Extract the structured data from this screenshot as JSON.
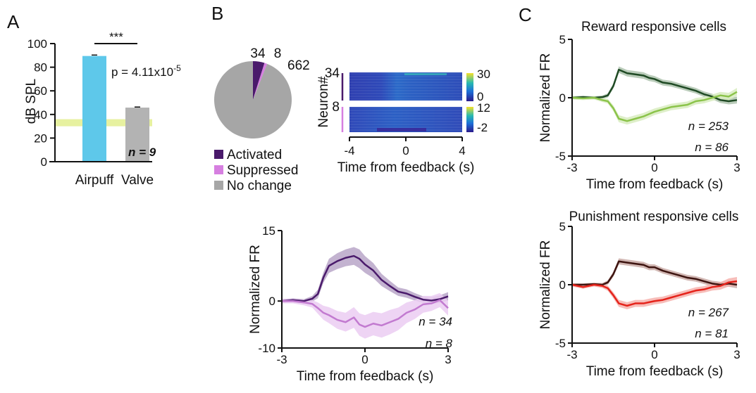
{
  "panels": {
    "a": "A",
    "b": "B",
    "c": "C"
  },
  "chart_data": [
    {
      "id": "A",
      "type": "bar",
      "categories": [
        "Airpuff",
        "Valve"
      ],
      "values": [
        89.5,
        45.8
      ],
      "errors": [
        0.8,
        0.5
      ],
      "colors": [
        "#5ec8ea",
        "#b3b3b3"
      ],
      "ylabel": "dB SPL",
      "ylim": [
        0,
        100
      ],
      "yticks": [
        0,
        20,
        40,
        60,
        80,
        100
      ],
      "band": {
        "from": 30,
        "to": 36,
        "color": "#e3ef8f"
      },
      "significance": "***",
      "p_value": {
        "prefix": "p = 4.11x10",
        "exponent": "-5"
      },
      "n_label": "n = 9"
    },
    {
      "id": "B-pie",
      "type": "pie",
      "labels": [
        "Activated",
        "Suppressed",
        "No change"
      ],
      "values": [
        34,
        8,
        662
      ],
      "value_labels": [
        "34",
        "8",
        "662"
      ],
      "colors": [
        "#4a1a6b",
        "#d67fe0",
        "#a6a6a6"
      ]
    },
    {
      "id": "B-heatmap",
      "type": "heatmap",
      "ylabel": "Neuron#",
      "xlabel": "Time from feedback (s)",
      "xlim": [
        -4,
        4
      ],
      "xticks": [
        "-4",
        "0",
        "4"
      ],
      "row_labels": [
        "34",
        "8"
      ],
      "colorbars": [
        {
          "ticks": [
            "30",
            "0"
          ],
          "range": [
            0,
            30
          ]
        },
        {
          "ticks": [
            "12",
            "-2"
          ],
          "range": [
            -2,
            12
          ]
        }
      ]
    },
    {
      "id": "B-trace",
      "type": "line",
      "xlabel": "Time from feedback (s)",
      "ylabel": "Normalized FR",
      "xlim": [
        -3,
        3
      ],
      "ylim": [
        -10,
        15
      ],
      "xticks": [
        "-3",
        "0",
        "3"
      ],
      "yticks": [
        "15",
        "0",
        "-10"
      ],
      "x": [
        -3,
        -2.6,
        -2.2,
        -1.9,
        -1.7,
        -1.5,
        -1.3,
        -1.0,
        -0.7,
        -0.4,
        -0.2,
        0.0,
        0.3,
        0.6,
        0.9,
        1.2,
        1.5,
        1.8,
        2.1,
        2.4,
        2.7,
        3.0
      ],
      "series": [
        {
          "name": "n = 34",
          "color": "#4a1a6b",
          "band": "#b9a6c8",
          "values": [
            0,
            0.2,
            0,
            0.5,
            1.5,
            5,
            7.5,
            8.5,
            9.2,
            9.6,
            9.0,
            7.8,
            6.5,
            4.5,
            3.2,
            2.0,
            1.6,
            0.9,
            0.3,
            0.1,
            0.4,
            1.0
          ],
          "sem": [
            0.4,
            0.4,
            0.4,
            0.6,
            0.9,
            1.1,
            1.5,
            1.7,
            1.8,
            1.9,
            2.0,
            1.8,
            1.6,
            1.3,
            1.1,
            0.9,
            0.9,
            0.8,
            0.7,
            0.7,
            0.8,
            0.9
          ]
        },
        {
          "name": "n = 8",
          "color": "#c27ad0",
          "band": "#ebcdf2",
          "values": [
            0,
            0,
            -0.3,
            -0.6,
            -1.5,
            -2.5,
            -3.0,
            -4.0,
            -4.5,
            -3.5,
            -5.0,
            -5.5,
            -4.8,
            -5.2,
            -4.5,
            -3.8,
            -2.5,
            -1.8,
            -0.7,
            -0.5,
            0.2,
            -1.5
          ],
          "sem": [
            0.5,
            0.5,
            0.6,
            0.8,
            1.2,
            1.5,
            1.7,
            1.9,
            2.0,
            2.2,
            2.4,
            2.5,
            2.5,
            2.6,
            2.6,
            2.4,
            2.2,
            2.0,
            1.8,
            1.6,
            1.5,
            1.6
          ]
        }
      ]
    },
    {
      "id": "C-reward",
      "type": "line",
      "title": "Reward responsive cells",
      "xlabel": "Time from feedback (s)",
      "ylabel": "Normalized FR",
      "xlim": [
        -3,
        3
      ],
      "ylim": [
        -5,
        5
      ],
      "xticks": [
        "-3",
        "0",
        "3"
      ],
      "yticks": [
        "5",
        "0",
        "-5"
      ],
      "x": [
        -3,
        -2.6,
        -2.2,
        -1.9,
        -1.7,
        -1.5,
        -1.3,
        -1.0,
        -0.7,
        -0.4,
        -0.2,
        0.0,
        0.3,
        0.6,
        0.9,
        1.2,
        1.5,
        1.8,
        2.1,
        2.4,
        2.7,
        3.0
      ],
      "series": [
        {
          "name": "n = 253",
          "color": "#1f4a24",
          "band": "#aec3ae",
          "values": [
            0,
            0.05,
            0,
            0.05,
            0.2,
            1.0,
            2.4,
            2.1,
            2.0,
            1.9,
            1.7,
            1.6,
            1.3,
            1.2,
            1.0,
            0.8,
            0.6,
            0.3,
            0.1,
            -0.2,
            -0.3,
            -0.2
          ],
          "sem": [
            0.12,
            0.12,
            0.12,
            0.14,
            0.18,
            0.22,
            0.28,
            0.28,
            0.28,
            0.28,
            0.27,
            0.26,
            0.25,
            0.25,
            0.24,
            0.24,
            0.24,
            0.24,
            0.24,
            0.25,
            0.27,
            0.3
          ]
        },
        {
          "name": "n = 86",
          "color": "#8bc34a",
          "band": "#d8ecbf",
          "values": [
            0,
            -0.05,
            0,
            -0.2,
            -0.3,
            -0.9,
            -1.8,
            -2.0,
            -1.8,
            -1.6,
            -1.4,
            -1.2,
            -1.0,
            -0.8,
            -0.7,
            -0.6,
            -0.3,
            -0.2,
            0.0,
            0.2,
            0.1,
            0.5
          ],
          "sem": [
            0.15,
            0.15,
            0.15,
            0.17,
            0.2,
            0.25,
            0.3,
            0.3,
            0.3,
            0.3,
            0.3,
            0.28,
            0.28,
            0.28,
            0.28,
            0.28,
            0.28,
            0.28,
            0.28,
            0.3,
            0.32,
            0.34
          ]
        }
      ]
    },
    {
      "id": "C-punishment",
      "type": "line",
      "title": "Punishment responsive cells",
      "xlabel": "Time from feedback (s)",
      "ylabel": "Normalized FR",
      "xlim": [
        -3,
        3
      ],
      "ylim": [
        -5,
        5
      ],
      "xticks": [
        "-3",
        "0",
        "3"
      ],
      "yticks": [
        "5",
        "0",
        "-5"
      ],
      "x": [
        -3,
        -2.6,
        -2.2,
        -1.9,
        -1.7,
        -1.5,
        -1.3,
        -1.0,
        -0.7,
        -0.4,
        -0.2,
        0.0,
        0.3,
        0.6,
        0.9,
        1.2,
        1.5,
        1.8,
        2.1,
        2.4,
        2.7,
        3.0
      ],
      "series": [
        {
          "name": "n = 267",
          "color": "#3d1410",
          "band": "#c9aaa6",
          "values": [
            0,
            0,
            0.05,
            0.0,
            0.2,
            0.9,
            2.0,
            1.9,
            1.8,
            1.7,
            1.5,
            1.5,
            1.2,
            1.0,
            0.8,
            0.6,
            0.5,
            0.3,
            0.1,
            0.0,
            0.1,
            0.0
          ],
          "sem": [
            0.12,
            0.12,
            0.12,
            0.14,
            0.18,
            0.22,
            0.26,
            0.26,
            0.26,
            0.26,
            0.26,
            0.25,
            0.24,
            0.24,
            0.24,
            0.24,
            0.24,
            0.24,
            0.24,
            0.25,
            0.27,
            0.3
          ]
        },
        {
          "name": "n = 81",
          "color": "#e5231b",
          "band": "#f6b2ad",
          "values": [
            0,
            -0.2,
            0,
            -0.1,
            -0.3,
            -0.9,
            -1.6,
            -1.8,
            -1.6,
            -1.6,
            -1.5,
            -1.4,
            -1.3,
            -1.1,
            -0.9,
            -0.7,
            -0.5,
            -0.4,
            -0.2,
            -0.1,
            0.2,
            0.3
          ],
          "sem": [
            0.15,
            0.15,
            0.15,
            0.18,
            0.22,
            0.26,
            0.3,
            0.3,
            0.3,
            0.3,
            0.3,
            0.29,
            0.28,
            0.28,
            0.28,
            0.28,
            0.28,
            0.28,
            0.3,
            0.32,
            0.34,
            0.36
          ]
        }
      ]
    }
  ]
}
